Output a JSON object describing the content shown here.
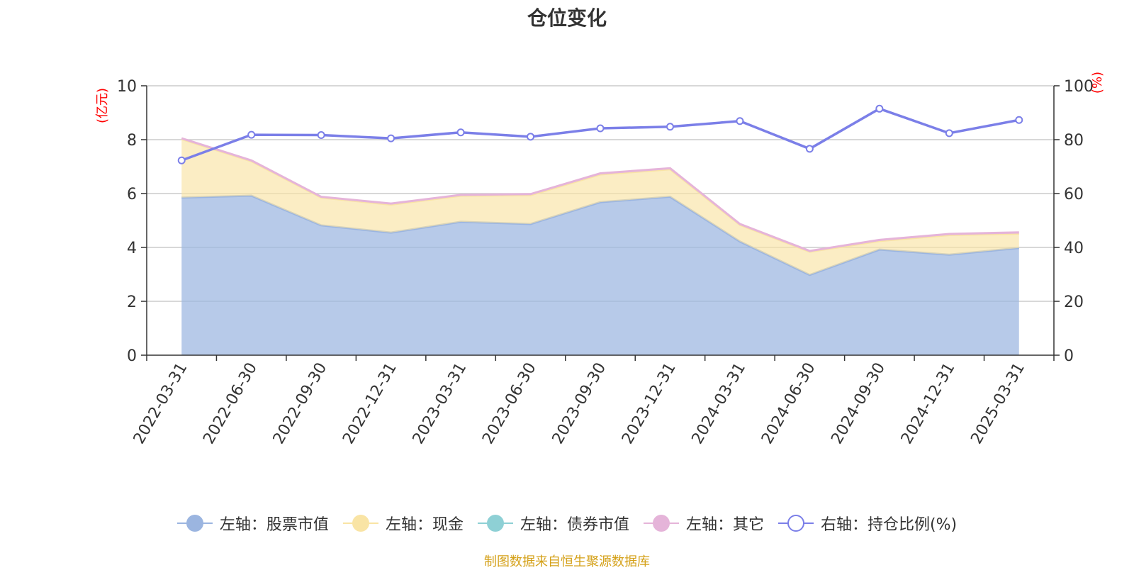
{
  "chart_data": {
    "type": "area",
    "title": "仓位变化",
    "categories": [
      "2022-03-31",
      "2022-06-30",
      "2022-09-30",
      "2022-12-31",
      "2023-03-31",
      "2023-06-30",
      "2023-09-30",
      "2023-12-31",
      "2024-03-31",
      "2024-06-30",
      "2024-09-30",
      "2024-12-31",
      "2025-03-31"
    ],
    "left_axis": {
      "unit": "(亿元)",
      "ylim": [
        0,
        10
      ],
      "ticks": [
        0,
        2,
        4,
        6,
        8,
        10
      ]
    },
    "right_axis": {
      "unit": "(%)",
      "ylim": [
        0,
        100
      ],
      "ticks": [
        0,
        20,
        40,
        60,
        80,
        100
      ]
    },
    "grid": true,
    "legend_position": "bottom",
    "series": [
      {
        "name": "左轴：股票市值",
        "type": "area",
        "axis": "left",
        "stack": true,
        "color": "#9bb5e0",
        "values": [
          5.85,
          5.92,
          4.82,
          4.55,
          4.95,
          4.87,
          5.68,
          5.88,
          4.22,
          2.98,
          3.92,
          3.73,
          3.98
        ]
      },
      {
        "name": "左轴：现金",
        "type": "area",
        "axis": "left",
        "stack": true,
        "color": "#f9e4a5",
        "values": [
          2.17,
          1.28,
          1.03,
          1.04,
          0.97,
          1.07,
          1.03,
          1.02,
          0.62,
          0.86,
          0.32,
          0.73,
          0.53
        ]
      },
      {
        "name": "左轴：债券市值",
        "type": "area",
        "axis": "left",
        "stack": true,
        "color": "#8ed0d5",
        "values": [
          0,
          0,
          0,
          0,
          0,
          0,
          0,
          0,
          0,
          0,
          0,
          0,
          0
        ]
      },
      {
        "name": "左轴：其它",
        "type": "area",
        "axis": "left",
        "stack": true,
        "color": "#e5b4d9",
        "values": [
          0.03,
          0.03,
          0.03,
          0.04,
          0.03,
          0.04,
          0.04,
          0.04,
          0.03,
          0.03,
          0.04,
          0.04,
          0.05
        ]
      },
      {
        "name": "右轴：持仓比例(%)",
        "type": "line",
        "axis": "right",
        "color": "#7b7fe8",
        "values": [
          72.3,
          81.8,
          81.7,
          80.5,
          82.7,
          81.1,
          84.2,
          84.8,
          86.9,
          76.6,
          91.5,
          82.4,
          87.3
        ]
      }
    ],
    "source": "制图数据来自恒生聚源数据库"
  }
}
